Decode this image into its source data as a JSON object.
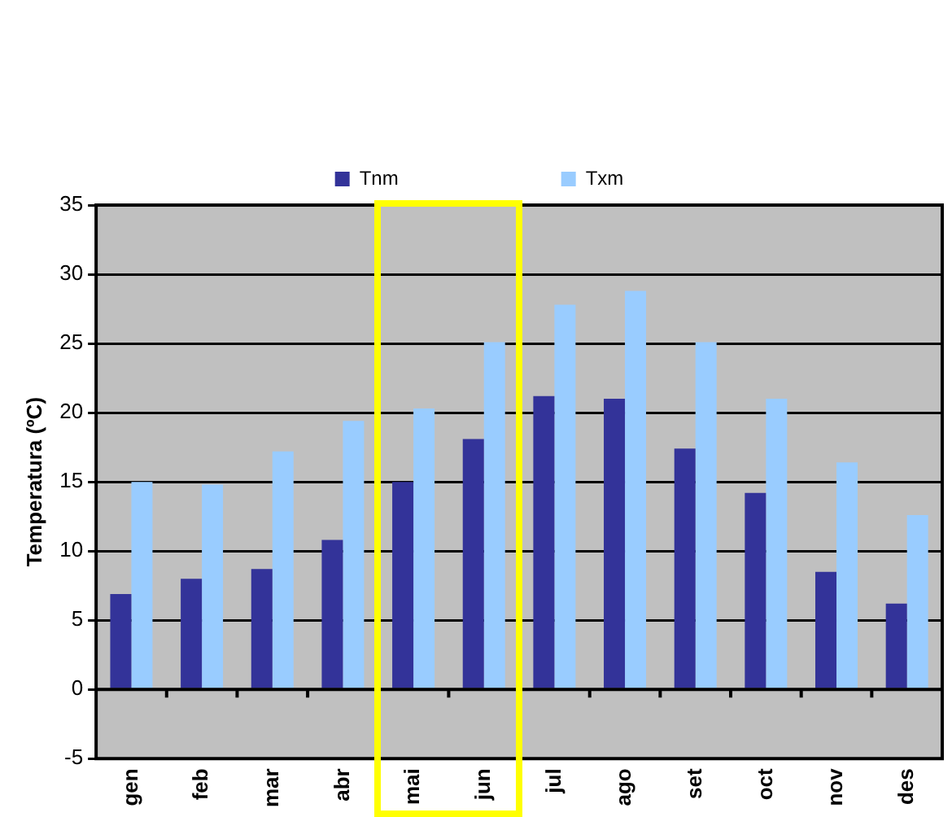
{
  "chart_data": {
    "type": "bar",
    "ylabel": "Temperatura (ºC)",
    "categories": [
      "gen",
      "feb",
      "mar",
      "abr",
      "mai",
      "jun",
      "jul",
      "ago",
      "set",
      "oct",
      "nov",
      "des"
    ],
    "series": [
      {
        "name": "Tnm",
        "color": "#333399",
        "values": [
          6.9,
          8.0,
          8.7,
          10.8,
          15.0,
          18.1,
          21.2,
          21.0,
          17.4,
          14.2,
          8.5,
          6.2
        ]
      },
      {
        "name": "Txm",
        "color": "#99ccff",
        "values": [
          15.0,
          14.8,
          17.2,
          19.4,
          20.3,
          25.1,
          27.8,
          28.8,
          25.1,
          21.0,
          16.4,
          12.6
        ]
      }
    ],
    "ylim": [
      -5,
      35
    ],
    "yticks": [
      -5,
      0,
      5,
      10,
      15,
      20,
      25,
      30,
      35
    ],
    "grid": "y",
    "legend": "top"
  }
}
